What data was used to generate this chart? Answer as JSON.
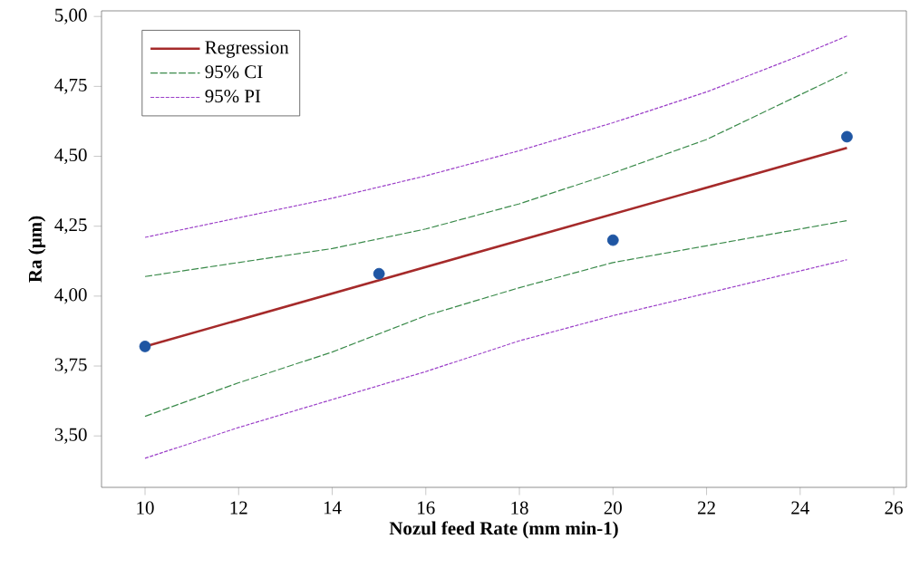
{
  "chart_data": {
    "type": "line",
    "xlabel": "Nozul feed Rate (mm min-1)",
    "ylabel": "Ra (µm)",
    "xlim": [
      9.07,
      26.27
    ],
    "ylim": [
      3.316,
      5.02
    ],
    "xticks": [
      10,
      12,
      14,
      16,
      18,
      20,
      22,
      24,
      26
    ],
    "yticks": [
      {
        "value": 3.5,
        "label": "3,50"
      },
      {
        "value": 3.75,
        "label": "3,75"
      },
      {
        "value": 4.0,
        "label": "4,00"
      },
      {
        "value": 4.25,
        "label": "4,25"
      },
      {
        "value": 4.5,
        "label": "4,50"
      },
      {
        "value": 4.75,
        "label": "4,75"
      },
      {
        "value": 5.0,
        "label": "5,00"
      }
    ],
    "grid": false,
    "legend": "top left",
    "series": [
      {
        "name": "Regression",
        "line_style": "solid",
        "color": "#a52a2a",
        "x": [
          10,
          25
        ],
        "values": [
          3.82,
          4.53
        ]
      },
      {
        "name": "95% CI",
        "line_style": "dashed",
        "color": "#3a8a4a",
        "x": [
          10,
          12,
          14,
          16,
          18,
          20,
          22,
          24,
          25
        ],
        "values": [
          4.07,
          4.12,
          4.17,
          4.24,
          4.33,
          4.44,
          4.56,
          4.72,
          4.8
        ]
      },
      {
        "line_style": "dashed",
        "color": "#3a8a4a",
        "x": [
          10,
          12,
          14,
          16,
          18,
          20,
          22,
          24,
          25
        ],
        "values": [
          3.57,
          3.69,
          3.8,
          3.93,
          4.03,
          4.12,
          4.18,
          4.24,
          4.27
        ]
      },
      {
        "name": "95% PI",
        "line_style": "dotted",
        "color": "#9b3fc8",
        "x": [
          10,
          12,
          14,
          16,
          18,
          20,
          22,
          24,
          25
        ],
        "values": [
          4.21,
          4.28,
          4.35,
          4.43,
          4.52,
          4.62,
          4.73,
          4.86,
          4.93
        ]
      },
      {
        "line_style": "dotted",
        "color": "#9b3fc8",
        "x": [
          10,
          12,
          14,
          16,
          18,
          20,
          22,
          24,
          25
        ],
        "values": [
          3.42,
          3.53,
          3.63,
          3.73,
          3.84,
          3.93,
          4.01,
          4.09,
          4.13
        ]
      },
      {
        "type": "scatter",
        "color": "#1f56a3",
        "x": [
          10,
          15,
          20,
          25
        ],
        "values": [
          3.82,
          4.08,
          4.2,
          4.57
        ]
      }
    ]
  }
}
